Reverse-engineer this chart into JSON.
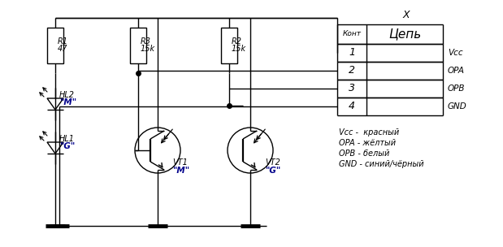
{
  "bg_color": "#ffffff",
  "line_color": "#000000",
  "blue_color": "#00008B",
  "fig_w": 6.19,
  "fig_h": 3.04,
  "dpi": 100,
  "connector_label": "X",
  "table_header_kont": "Конт",
  "table_header_tsep": "Цепь",
  "table_rows": [
    "1",
    "2",
    "3",
    "4"
  ],
  "table_signals": [
    "Vcc",
    "OPA",
    "OPB",
    "GND"
  ],
  "legend_lines": [
    "Vcc -  красный",
    "OPA - жёлтый",
    "OPB - белый",
    "GND - синий/чёрный"
  ],
  "r1_label1": "R1",
  "r1_label2": "47",
  "r3_label1": "R3",
  "r3_label2": "15k",
  "r2_label1": "R2",
  "r2_label2": "15k",
  "hl2_label": "HL2",
  "hl2_val": "\"M\"",
  "hl1_label": "HL1",
  "hl1_val": "\"G\"",
  "vt1_name": "VT1",
  "vt1_val": "\"M\"",
  "vt2_name": "VT2",
  "vt2_val": "\"G\""
}
